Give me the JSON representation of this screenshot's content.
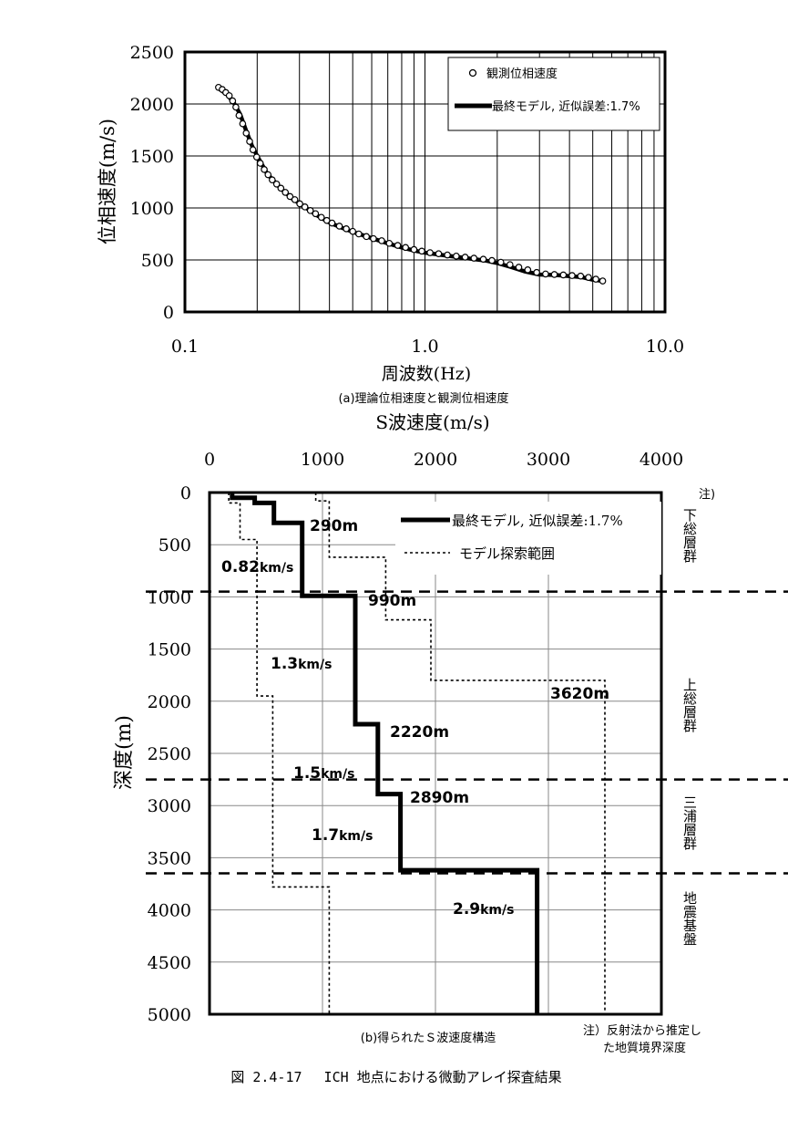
{
  "chart_data": [
    {
      "type": "scatter",
      "xlabel": "周波数(Hz)",
      "ylabel": "位相速度(m/s)",
      "x_scale": "log",
      "xlim": [
        0.1,
        10.0
      ],
      "ylim": [
        0,
        2500
      ],
      "x_ticks": [
        "0.1",
        "1.0",
        "10.0"
      ],
      "y_ticks": [
        "0",
        "500",
        "1000",
        "1500",
        "2000",
        "2500"
      ],
      "grid": true,
      "legend_position": "top-right",
      "legend": [
        "観測位相速度",
        "最終モデル, 近似誤差:1.7%"
      ],
      "series": [
        {
          "name": "観測位相速度",
          "marker": "circle",
          "x": [
            0.138,
            0.143,
            0.148,
            0.153,
            0.158,
            0.163,
            0.168,
            0.174,
            0.18,
            0.186,
            0.192,
            0.199,
            0.206,
            0.214,
            0.222,
            0.231,
            0.241,
            0.251,
            0.262,
            0.274,
            0.287,
            0.301,
            0.316,
            0.333,
            0.35,
            0.37,
            0.39,
            0.41,
            0.44,
            0.47,
            0.5,
            0.53,
            0.57,
            0.61,
            0.66,
            0.71,
            0.77,
            0.83,
            0.9,
            0.97,
            1.05,
            1.14,
            1.24,
            1.35,
            1.47,
            1.6,
            1.75,
            1.9,
            2.07,
            2.26,
            2.46,
            2.68,
            2.92,
            3.18,
            3.46,
            3.77,
            4.1,
            4.45,
            4.8,
            5.15,
            5.5
          ],
          "y": [
            2160,
            2140,
            2110,
            2080,
            2030,
            1970,
            1890,
            1810,
            1720,
            1640,
            1560,
            1490,
            1430,
            1370,
            1320,
            1270,
            1230,
            1190,
            1150,
            1110,
            1080,
            1040,
            1010,
            975,
            945,
            910,
            880,
            855,
            825,
            800,
            775,
            750,
            725,
            705,
            685,
            660,
            640,
            620,
            600,
            585,
            570,
            560,
            548,
            537,
            527,
            517,
            507,
            495,
            478,
            455,
            430,
            405,
            380,
            365,
            360,
            356,
            350,
            345,
            332,
            315,
            298
          ]
        },
        {
          "name": "最終モデル, 近似誤差:1.7%",
          "type": "line",
          "x": [
            0.138,
            0.15,
            0.16,
            0.17,
            0.18,
            0.19,
            0.2,
            0.22,
            0.25,
            0.28,
            0.32,
            0.36,
            0.4,
            0.45,
            0.5,
            0.6,
            0.7,
            0.8,
            0.9,
            1.0,
            1.2,
            1.4,
            1.6,
            1.8,
            2.0,
            2.3,
            2.6,
            3.0,
            3.5,
            4.0,
            4.5,
            5.0,
            5.5
          ],
          "y": [
            2150,
            2090,
            2010,
            1900,
            1740,
            1600,
            1500,
            1330,
            1190,
            1090,
            1000,
            920,
            860,
            810,
            770,
            710,
            660,
            620,
            590,
            570,
            545,
            525,
            508,
            493,
            470,
            430,
            390,
            360,
            355,
            345,
            335,
            310,
            298
          ]
        }
      ],
      "caption": "(a)理論位相速度と観測位相速度"
    },
    {
      "type": "line",
      "title": "S波速度(m/s)",
      "ylabel": "深度(m)",
      "xlim": [
        0,
        4000
      ],
      "ylim": [
        5000,
        0
      ],
      "x_ticks": [
        "0",
        "1000",
        "2000",
        "3000",
        "4000"
      ],
      "y_ticks": [
        "0",
        "500",
        "1000",
        "1500",
        "2000",
        "2500",
        "3000",
        "3500",
        "4000",
        "4500",
        "5000"
      ],
      "grid": true,
      "legend_position": "top-right",
      "legend": [
        "最終モデル, 近似誤差:1.7%",
        "モデル探索範囲"
      ],
      "series": [
        {
          "name": "最終モデル, 近似誤差:1.7%",
          "style": "step",
          "x": [
            200,
            200,
            400,
            400,
            570,
            570,
            820,
            820,
            1290,
            1290,
            1490,
            1490,
            1690,
            1690,
            2900,
            2900
          ],
          "y": [
            0,
            50,
            50,
            100,
            100,
            290,
            290,
            990,
            990,
            2220,
            2220,
            2890,
            2890,
            3620,
            3620,
            5000
          ]
        },
        {
          "name": "モデル探索範囲 (下限)",
          "style": "dashed-step",
          "x": [
            170,
            170,
            270,
            270,
            420,
            420,
            560,
            560,
            820,
            820,
            1060,
            1060
          ],
          "y": [
            0,
            100,
            100,
            450,
            450,
            1950,
            1950,
            3780,
            3780,
            3780,
            3780,
            5000
          ]
        },
        {
          "name": "モデル探索範囲 (上限)",
          "style": "dashed-step",
          "x": [
            940,
            940,
            1060,
            1060,
            1560,
            1560,
            1960,
            1960,
            3500,
            3500
          ],
          "y": [
            0,
            80,
            80,
            620,
            620,
            1220,
            1220,
            1800,
            1800,
            5000
          ]
        }
      ],
      "layer_labels": [
        "290m",
        "990m",
        "2220m",
        "2890m",
        "3620m"
      ],
      "velocity_labels": [
        {
          "num": "0.82",
          "unit": "km/s"
        },
        {
          "num": "1.3",
          "unit": "km/s"
        },
        {
          "num": "1.5",
          "unit": "km/s"
        },
        {
          "num": "1.7",
          "unit": "km/s"
        },
        {
          "num": "2.9",
          "unit": "km/s"
        }
      ],
      "boundary_depths": [
        950,
        2750,
        3650
      ],
      "formations": [
        "下総層群",
        "上総層群",
        "三浦層群",
        "地震基盤"
      ],
      "note_mark": "注)",
      "note_text_1": "注）反射法から推定し",
      "note_text_2": "た地質境界深度",
      "caption": "(b)得られたＳ波速度構造"
    }
  ],
  "figure_caption": "図 2.4-17　 ICH 地点における微動アレイ探査結果"
}
